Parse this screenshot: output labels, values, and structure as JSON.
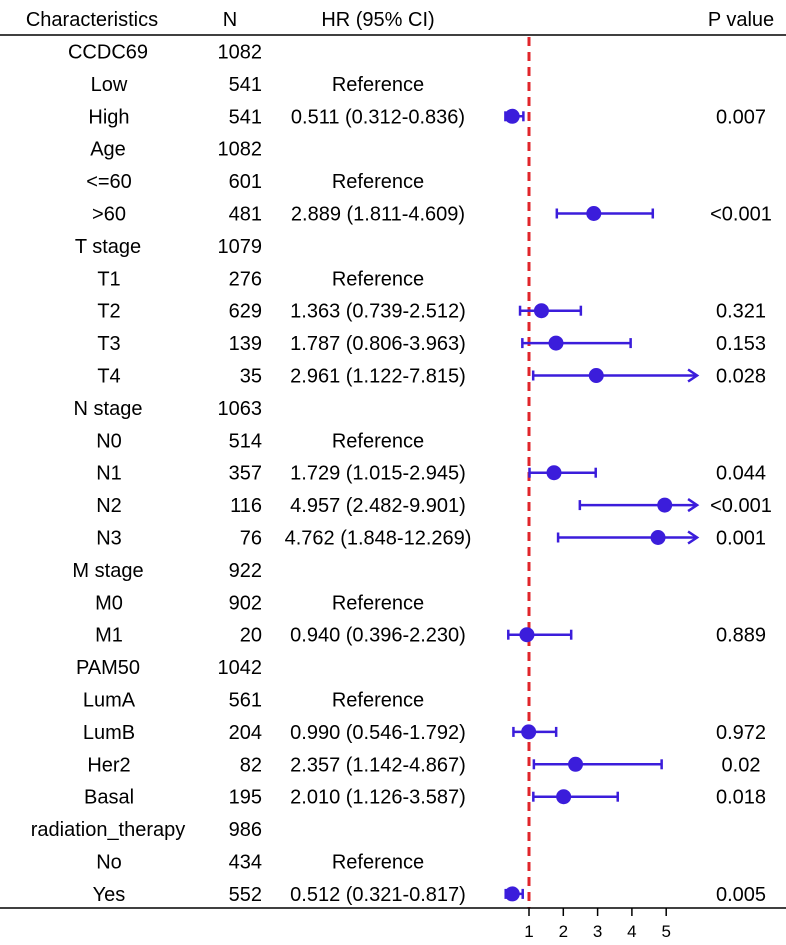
{
  "chart_data": {
    "type": "forest",
    "headers": {
      "characteristics": "Characteristics",
      "n": "N",
      "hr": "HR (95% CI)",
      "p": "P value"
    },
    "reference_line": 1,
    "x_ticks": [
      "1",
      "2",
      "3",
      "4",
      "5"
    ],
    "x_range": [
      -0.5,
      5.9
    ],
    "colors": {
      "point": "#3b1ddb",
      "reference_line": "#e0262b",
      "axis": "#000000"
    },
    "rows": [
      {
        "label": "CCDC69",
        "n": "1082",
        "hr_text": "",
        "p": "",
        "indent": false
      },
      {
        "label": "Low",
        "n": "541",
        "hr_text": "Reference",
        "p": "",
        "indent": true
      },
      {
        "label": "High",
        "n": "541",
        "hr_text": "0.511 (0.312-0.836)",
        "p": "0.007",
        "indent": true,
        "hr": 0.511,
        "lo": 0.312,
        "hi": 0.836
      },
      {
        "label": "Age",
        "n": "1082",
        "hr_text": "",
        "p": "",
        "indent": false
      },
      {
        "label": "<=60",
        "n": "601",
        "hr_text": "Reference",
        "p": "",
        "indent": true
      },
      {
        "label": ">60",
        "n": "481",
        "hr_text": "2.889 (1.811-4.609)",
        "p": "<0.001",
        "indent": true,
        "hr": 2.889,
        "lo": 1.811,
        "hi": 4.609
      },
      {
        "label": "T stage",
        "n": "1079",
        "hr_text": "",
        "p": "",
        "indent": false
      },
      {
        "label": "T1",
        "n": "276",
        "hr_text": "Reference",
        "p": "",
        "indent": true
      },
      {
        "label": "T2",
        "n": "629",
        "hr_text": "1.363 (0.739-2.512)",
        "p": "0.321",
        "indent": true,
        "hr": 1.363,
        "lo": 0.739,
        "hi": 2.512
      },
      {
        "label": "T3",
        "n": "139",
        "hr_text": "1.787 (0.806-3.963)",
        "p": "0.153",
        "indent": true,
        "hr": 1.787,
        "lo": 0.806,
        "hi": 3.963
      },
      {
        "label": "T4",
        "n": "35",
        "hr_text": "2.961 (1.122-7.815)",
        "p": "0.028",
        "indent": true,
        "hr": 2.961,
        "lo": 1.122,
        "hi": 7.815
      },
      {
        "label": "N stage",
        "n": "1063",
        "hr_text": "",
        "p": "",
        "indent": false
      },
      {
        "label": "N0",
        "n": "514",
        "hr_text": "Reference",
        "p": "",
        "indent": true
      },
      {
        "label": "N1",
        "n": "357",
        "hr_text": "1.729 (1.015-2.945)",
        "p": "0.044",
        "indent": true,
        "hr": 1.729,
        "lo": 1.015,
        "hi": 2.945
      },
      {
        "label": "N2",
        "n": "116",
        "hr_text": "4.957 (2.482-9.901)",
        "p": "<0.001",
        "indent": true,
        "hr": 4.957,
        "lo": 2.482,
        "hi": 9.901
      },
      {
        "label": "N3",
        "n": "76",
        "hr_text": "4.762 (1.848-12.269)",
        "p": "0.001",
        "indent": true,
        "hr": 4.762,
        "lo": 1.848,
        "hi": 12.269
      },
      {
        "label": "M stage",
        "n": "922",
        "hr_text": "",
        "p": "",
        "indent": false
      },
      {
        "label": "M0",
        "n": "902",
        "hr_text": "Reference",
        "p": "",
        "indent": true
      },
      {
        "label": "M1",
        "n": "20",
        "hr_text": "0.940 (0.396-2.230)",
        "p": "0.889",
        "indent": true,
        "hr": 0.94,
        "lo": 0.396,
        "hi": 2.23
      },
      {
        "label": "PAM50",
        "n": "1042",
        "hr_text": "",
        "p": "",
        "indent": false
      },
      {
        "label": "LumA",
        "n": "561",
        "hr_text": "Reference",
        "p": "",
        "indent": true
      },
      {
        "label": "LumB",
        "n": "204",
        "hr_text": "0.990 (0.546-1.792)",
        "p": "0.972",
        "indent": true,
        "hr": 0.99,
        "lo": 0.546,
        "hi": 1.792
      },
      {
        "label": "Her2",
        "n": "82",
        "hr_text": "2.357 (1.142-4.867)",
        "p": "0.02",
        "indent": true,
        "hr": 2.357,
        "lo": 1.142,
        "hi": 4.867
      },
      {
        "label": "Basal",
        "n": "195",
        "hr_text": "2.010 (1.126-3.587)",
        "p": "0.018",
        "indent": true,
        "hr": 2.01,
        "lo": 1.126,
        "hi": 3.587
      },
      {
        "label": "radiation_therapy",
        "n": "986",
        "hr_text": "",
        "p": "",
        "indent": false
      },
      {
        "label": "No",
        "n": "434",
        "hr_text": "Reference",
        "p": "",
        "indent": true
      },
      {
        "label": "Yes",
        "n": "552",
        "hr_text": "0.512 (0.321-0.817)",
        "p": "0.005",
        "indent": true,
        "hr": 0.512,
        "lo": 0.321,
        "hi": 0.817
      }
    ]
  }
}
